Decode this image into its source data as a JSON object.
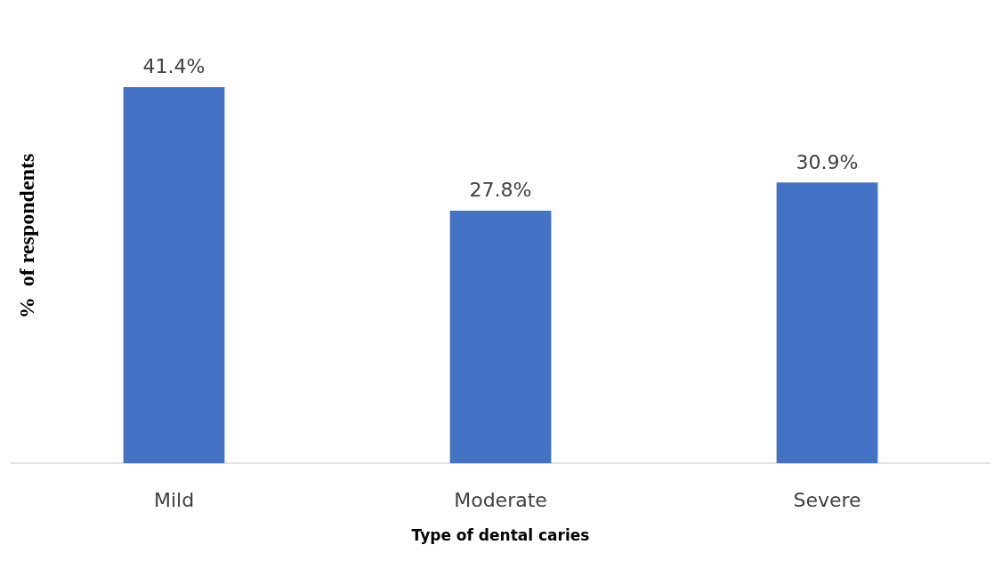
{
  "chart_data": {
    "type": "bar",
    "xlabel": "Type of dental caries",
    "ylabel": "%  of respondents",
    "categories": [
      "Mild",
      "Moderate",
      "Severe"
    ],
    "values": [
      41.4,
      27.8,
      30.9
    ],
    "color": "#4472c4",
    "value_labels": [
      "41.4%",
      "27.8%",
      "30.9%"
    ]
  }
}
